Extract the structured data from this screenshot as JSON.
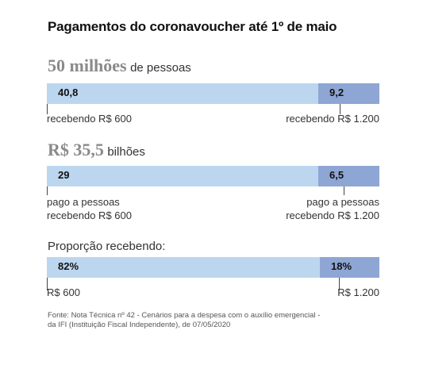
{
  "title": "Pagamentos do coronavoucher até 1º de maio",
  "chart_data": [
    {
      "type": "bar",
      "stacked": true,
      "orientation": "horizontal",
      "headline_value": "50 milhões",
      "headline_unit": "de pessoas",
      "categories": [
        "recebendo R$ 600",
        "recebendo R$ 1.200"
      ],
      "values": [
        40.8,
        9.2
      ],
      "value_labels": [
        "40,8",
        "9,2"
      ],
      "total": 50,
      "colors": [
        "#bcd6ef",
        "#8ea6d4"
      ]
    },
    {
      "type": "bar",
      "stacked": true,
      "orientation": "horizontal",
      "headline_value": "R$ 35,5",
      "headline_unit": "bilhões",
      "categories": [
        "pago a pessoas recebendo R$ 600",
        "pago a pessoas recebendo R$ 1.200"
      ],
      "values": [
        29,
        6.5
      ],
      "value_labels": [
        "29",
        "6,5"
      ],
      "total": 35.5,
      "colors": [
        "#bcd6ef",
        "#8ea6d4"
      ]
    },
    {
      "type": "bar",
      "stacked": true,
      "orientation": "horizontal",
      "label": "Proporção recebendo:",
      "categories": [
        "R$ 600",
        "R$ 1.200"
      ],
      "values": [
        82,
        18
      ],
      "value_labels": [
        "82%",
        "18%"
      ],
      "total": 100,
      "colors": [
        "#bcd6ef",
        "#8ea6d4"
      ]
    }
  ],
  "notes": {
    "c1_left": "recebendo R$ 600",
    "c1_right": "recebendo R$ 1.200",
    "c2_left_1": "pago a pessoas",
    "c2_left_2": "recebendo R$ 600",
    "c2_right_1": "pago a pessoas",
    "c2_right_2": "recebendo R$ 1.200",
    "c3_left": "R$ 600",
    "c3_right": "R$ 1.200"
  },
  "source": {
    "line1": "Fonte: Nota Técnica nº 42 - Cenários para a despesa com o auxílio emergencial -",
    "line2": "da IFI (Instituição Fiscal Independente), de 07/05/2020"
  }
}
